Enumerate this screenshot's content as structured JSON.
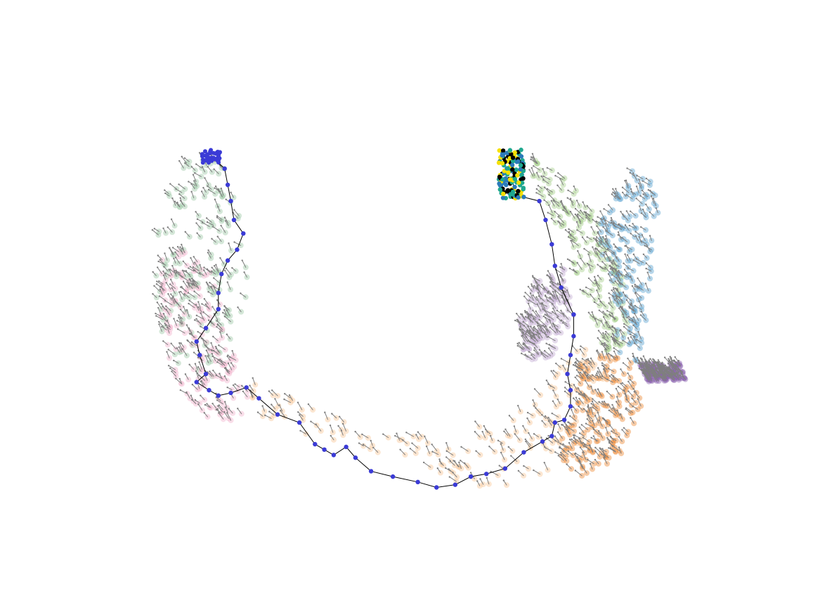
{
  "chart_data": {
    "type": "scatter",
    "title": "",
    "xlabel": "",
    "ylabel": "",
    "axes_visible": false,
    "grid": false,
    "legend": "none",
    "arrow_color": "#7f7f7f",
    "path_color": "#000000",
    "path_node_color": "#3b3bd6",
    "endpoint_colors": [
      "#000000",
      "#f5e000",
      "#1fa88f",
      "#2b7bb9"
    ],
    "clusters": [
      {
        "id": "upper-left-green",
        "color": "#9fc9a8",
        "outline": [
          [
            -0.78,
            0.78
          ],
          [
            -0.62,
            0.78
          ],
          [
            -0.58,
            0.55
          ],
          [
            -0.56,
            0.3
          ],
          [
            -0.6,
            0.05
          ],
          [
            -0.68,
            -0.05
          ],
          [
            -0.8,
            -0.02
          ],
          [
            -0.86,
            0.2
          ],
          [
            -0.86,
            0.45
          ],
          [
            -0.83,
            0.65
          ]
        ]
      },
      {
        "id": "left-pink",
        "color": "#f2b6cf",
        "outline": [
          [
            -0.84,
            0.45
          ],
          [
            -0.7,
            0.42
          ],
          [
            -0.62,
            0.1
          ],
          [
            -0.55,
            -0.12
          ],
          [
            -0.58,
            -0.2
          ],
          [
            -0.7,
            -0.18
          ],
          [
            -0.8,
            -0.05
          ],
          [
            -0.85,
            0.2
          ]
        ]
      },
      {
        "id": "bottom-light-orange",
        "color": "#f9c89a",
        "outline": [
          [
            -0.58,
            -0.15
          ],
          [
            -0.3,
            -0.28
          ],
          [
            -0.05,
            -0.36
          ],
          [
            0.2,
            -0.46
          ],
          [
            0.4,
            -0.38
          ],
          [
            0.55,
            -0.25
          ],
          [
            0.6,
            -0.05
          ],
          [
            0.5,
            0.1
          ],
          [
            0.32,
            -0.15
          ],
          [
            0.1,
            -0.25
          ],
          [
            -0.15,
            -0.25
          ],
          [
            -0.4,
            -0.12
          ],
          [
            -0.55,
            -0.05
          ]
        ]
      },
      {
        "id": "right-orange",
        "color": "#ed8b3a",
        "outline": [
          [
            0.5,
            0.05
          ],
          [
            0.66,
            0.05
          ],
          [
            0.7,
            -0.15
          ],
          [
            0.62,
            -0.35
          ],
          [
            0.5,
            -0.4
          ],
          [
            0.42,
            -0.32
          ],
          [
            0.48,
            -0.15
          ]
        ]
      },
      {
        "id": "right-light-green",
        "color": "#a8d08d",
        "outline": [
          [
            0.36,
            0.78
          ],
          [
            0.46,
            0.7
          ],
          [
            0.56,
            0.55
          ],
          [
            0.64,
            0.35
          ],
          [
            0.66,
            0.1
          ],
          [
            0.58,
            0.05
          ],
          [
            0.52,
            0.25
          ],
          [
            0.46,
            0.45
          ],
          [
            0.38,
            0.6
          ],
          [
            0.34,
            0.72
          ]
        ]
      },
      {
        "id": "right-blue",
        "color": "#5da4d0",
        "outline": [
          [
            0.56,
            0.55
          ],
          [
            0.66,
            0.74
          ],
          [
            0.76,
            0.68
          ],
          [
            0.74,
            0.45
          ],
          [
            0.72,
            0.2
          ],
          [
            0.68,
            0.0
          ],
          [
            0.62,
            0.05
          ],
          [
            0.6,
            0.3
          ],
          [
            0.56,
            0.45
          ]
        ]
      },
      {
        "id": "middle-lavender",
        "color": "#c5b0d5",
        "outline": [
          [
            0.34,
            0.32
          ],
          [
            0.46,
            0.38
          ],
          [
            0.48,
            0.2
          ],
          [
            0.42,
            0.05
          ],
          [
            0.33,
            0.02
          ],
          [
            0.3,
            0.15
          ]
        ]
      },
      {
        "id": "far-right-purple",
        "color": "#8c64b0",
        "outline": [
          [
            0.69,
            0.02
          ],
          [
            0.82,
            0.02
          ],
          [
            0.84,
            -0.04
          ],
          [
            0.72,
            -0.05
          ]
        ]
      }
    ],
    "path": [
      [
        -0.68,
        0.78
      ],
      [
        -0.64,
        0.74
      ],
      [
        -0.63,
        0.68
      ],
      [
        -0.62,
        0.62
      ],
      [
        -0.61,
        0.55
      ],
      [
        -0.58,
        0.5
      ],
      [
        -0.6,
        0.44
      ],
      [
        -0.63,
        0.4
      ],
      [
        -0.65,
        0.35
      ],
      [
        -0.66,
        0.28
      ],
      [
        -0.66,
        0.22
      ],
      [
        -0.7,
        0.15
      ],
      [
        -0.73,
        0.1
      ],
      [
        -0.72,
        0.05
      ],
      [
        -0.7,
        -0.02
      ],
      [
        -0.73,
        -0.05
      ],
      [
        -0.69,
        -0.08
      ],
      [
        -0.66,
        -0.1
      ],
      [
        -0.62,
        -0.09
      ],
      [
        -0.57,
        -0.07
      ],
      [
        -0.53,
        -0.11
      ],
      [
        -0.47,
        -0.17
      ],
      [
        -0.4,
        -0.2
      ],
      [
        -0.35,
        -0.28
      ],
      [
        -0.32,
        -0.3
      ],
      [
        -0.29,
        -0.32
      ],
      [
        -0.25,
        -0.29
      ],
      [
        -0.22,
        -0.33
      ],
      [
        -0.17,
        -0.38
      ],
      [
        -0.1,
        -0.4
      ],
      [
        -0.02,
        -0.42
      ],
      [
        0.04,
        -0.44
      ],
      [
        0.1,
        -0.43
      ],
      [
        0.15,
        -0.4
      ],
      [
        0.2,
        -0.39
      ],
      [
        0.26,
        -0.37
      ],
      [
        0.32,
        -0.31
      ],
      [
        0.38,
        -0.27
      ],
      [
        0.41,
        -0.25
      ],
      [
        0.42,
        -0.2
      ],
      [
        0.45,
        -0.19
      ],
      [
        0.47,
        -0.14
      ],
      [
        0.47,
        -0.08
      ],
      [
        0.46,
        -0.02
      ],
      [
        0.47,
        0.05
      ],
      [
        0.48,
        0.12
      ],
      [
        0.48,
        0.2
      ],
      [
        0.44,
        0.3
      ],
      [
        0.42,
        0.38
      ],
      [
        0.41,
        0.46
      ],
      [
        0.39,
        0.55
      ],
      [
        0.37,
        0.62
      ],
      [
        0.3,
        0.64
      ],
      [
        0.28,
        0.7
      ]
    ],
    "path_endpoints": {
      "start_cluster_center": [
        -0.685,
        0.785
      ],
      "end_cluster_center": [
        0.28,
        0.72
      ]
    },
    "xlim": [
      -1.0,
      1.0
    ],
    "ylim": [
      -0.6,
      1.0
    ]
  }
}
